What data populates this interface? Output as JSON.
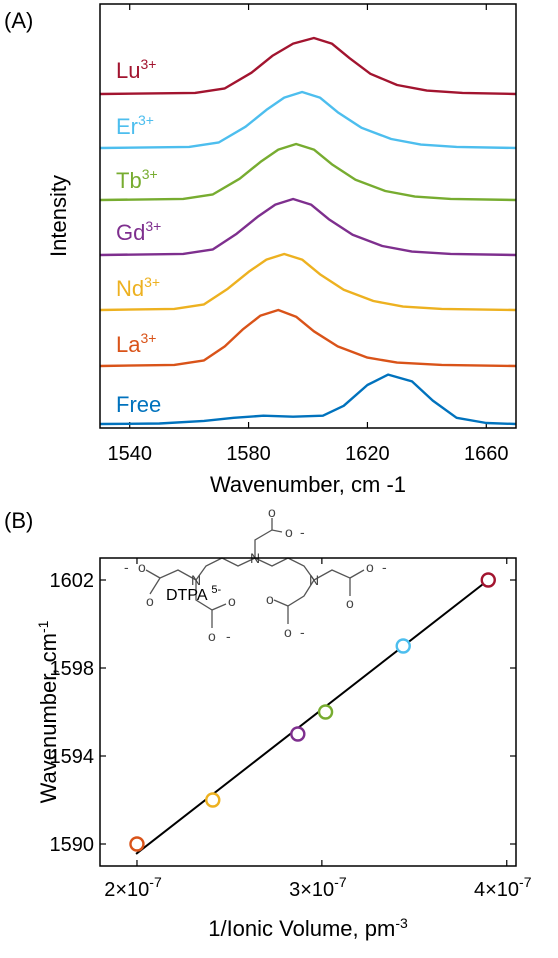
{
  "chart_data": [
    {
      "panel_label": "(A)",
      "type": "line",
      "xlabel": "Wavenumber, cm -1",
      "ylabel": "Intensity",
      "xlim": [
        1530,
        1670
      ],
      "xticks": [
        1540,
        1580,
        1620,
        1660
      ],
      "series": [
        {
          "name": "Free",
          "ion": "Free",
          "charge": "",
          "color": "#0072BD",
          "x": [
            1530,
            1550,
            1565,
            1575,
            1585,
            1595,
            1605,
            1612,
            1620,
            1627,
            1635,
            1642,
            1650,
            1660,
            1670
          ],
          "y": [
            0,
            0.01,
            0.06,
            0.12,
            0.16,
            0.14,
            0.16,
            0.35,
            0.75,
            0.95,
            0.82,
            0.45,
            0.12,
            0.02,
            0
          ]
        },
        {
          "name": "La3+",
          "ion": "La",
          "charge": "3+",
          "color": "#D95319",
          "x": [
            1530,
            1555,
            1565,
            1572,
            1578,
            1584,
            1590,
            1596,
            1602,
            1610,
            1620,
            1630,
            1645,
            1670
          ],
          "y": [
            0,
            0.02,
            0.1,
            0.35,
            0.65,
            0.9,
            1.0,
            0.88,
            0.62,
            0.35,
            0.15,
            0.06,
            0.02,
            0
          ]
        },
        {
          "name": "Nd3+",
          "ion": "Nd",
          "charge": "3+",
          "color": "#EDB120",
          "x": [
            1530,
            1555,
            1565,
            1573,
            1580,
            1586,
            1592,
            1598,
            1604,
            1612,
            1622,
            1632,
            1645,
            1670
          ],
          "y": [
            0,
            0.02,
            0.1,
            0.38,
            0.68,
            0.9,
            1.0,
            0.9,
            0.64,
            0.36,
            0.16,
            0.06,
            0.02,
            0
          ]
        },
        {
          "name": "Gd3+",
          "ion": "Gd",
          "charge": "3+",
          "color": "#7E2F8E",
          "x": [
            1530,
            1558,
            1568,
            1576,
            1583,
            1589,
            1595,
            1601,
            1607,
            1615,
            1625,
            1635,
            1648,
            1670
          ],
          "y": [
            0,
            0.02,
            0.1,
            0.38,
            0.68,
            0.9,
            1.0,
            0.9,
            0.64,
            0.36,
            0.16,
            0.06,
            0.02,
            0
          ]
        },
        {
          "name": "Tb3+",
          "ion": "Tb",
          "charge": "3+",
          "color": "#77AC30",
          "x": [
            1530,
            1558,
            1568,
            1577,
            1584,
            1590,
            1596,
            1602,
            1608,
            1616,
            1626,
            1636,
            1648,
            1670
          ],
          "y": [
            0,
            0.02,
            0.1,
            0.38,
            0.68,
            0.9,
            1.0,
            0.9,
            0.64,
            0.36,
            0.16,
            0.06,
            0.02,
            0
          ]
        },
        {
          "name": "Er3+",
          "ion": "Er",
          "charge": "3+",
          "color": "#4DBEEE",
          "x": [
            1530,
            1560,
            1570,
            1579,
            1586,
            1592,
            1598,
            1604,
            1610,
            1618,
            1628,
            1638,
            1650,
            1670
          ],
          "y": [
            0,
            0.02,
            0.1,
            0.38,
            0.68,
            0.9,
            1.0,
            0.9,
            0.64,
            0.36,
            0.16,
            0.06,
            0.02,
            0
          ]
        },
        {
          "name": "Lu3+",
          "ion": "Lu",
          "charge": "3+",
          "color": "#A2142F",
          "x": [
            1530,
            1562,
            1572,
            1581,
            1588,
            1595,
            1602,
            1608,
            1614,
            1621,
            1630,
            1640,
            1652,
            1670
          ],
          "y": [
            0,
            0.02,
            0.1,
            0.38,
            0.68,
            0.9,
            1.0,
            0.9,
            0.64,
            0.36,
            0.16,
            0.06,
            0.02,
            0
          ]
        }
      ]
    },
    {
      "panel_label": "(B)",
      "type": "scatter",
      "xlabel": "1/Ionic Volume, pm",
      "xlabel_sup": "-3",
      "ylabel": "Wavenumber, cm",
      "ylabel_sup": "-1",
      "xlim": [
        1.8e-07,
        4.05e-07
      ],
      "ylim": [
        1589,
        1603
      ],
      "xticks": [
        {
          "value": 2e-07,
          "mant": "2×10",
          "exp": "-7"
        },
        {
          "value": 3e-07,
          "mant": "3×10",
          "exp": "-7"
        },
        {
          "value": 4e-07,
          "mant": "4×10",
          "exp": "-7"
        }
      ],
      "yticks": [
        1590,
        1594,
        1598,
        1602
      ],
      "points": [
        {
          "ion": "La3+",
          "x": 2e-07,
          "y": 1590,
          "color": "#D95319"
        },
        {
          "ion": "Nd3+",
          "x": 2.41e-07,
          "y": 1592,
          "color": "#EDB120"
        },
        {
          "ion": "Gd3+",
          "x": 2.87e-07,
          "y": 1595,
          "color": "#7E2F8E"
        },
        {
          "ion": "Tb3+",
          "x": 3.02e-07,
          "y": 1596,
          "color": "#77AC30"
        },
        {
          "ion": "Er3+",
          "x": 3.44e-07,
          "y": 1599,
          "color": "#4DBEEE"
        },
        {
          "ion": "Lu3+",
          "x": 3.9e-07,
          "y": 1602,
          "color": "#A2142F"
        }
      ],
      "fit_line": {
        "x": [
          1.995e-07,
          3.9e-07
        ],
        "y": [
          1589.55,
          1602.0
        ],
        "color": "#000000"
      },
      "inset": {
        "title": "DTPA",
        "title_sup": "5-",
        "minus": "-",
        "oxygen": "o",
        "nitrogen": "N"
      }
    }
  ]
}
